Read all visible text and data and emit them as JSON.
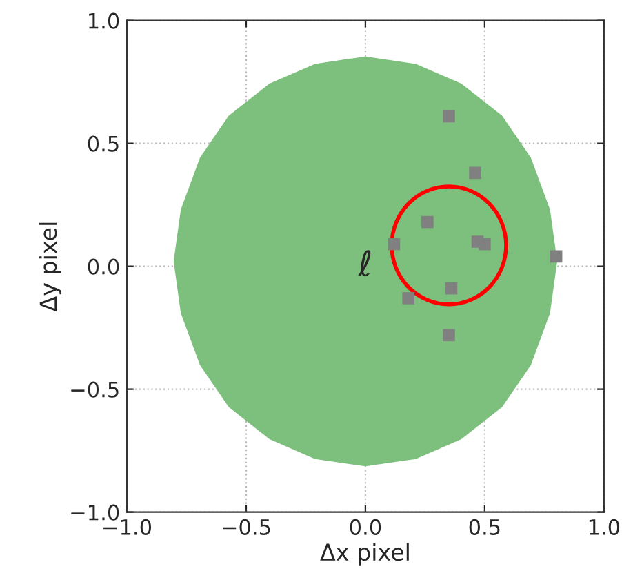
{
  "chart_data": {
    "type": "scatter",
    "xlabel": "Δx pixel",
    "ylabel": "Δy pixel",
    "xlim": [
      -1.0,
      1.0
    ],
    "ylim": [
      -1.0,
      1.0
    ],
    "xticks": [
      {
        "value": -1.0,
        "label": "−1.0"
      },
      {
        "value": -0.5,
        "label": "−0.5"
      },
      {
        "value": 0.0,
        "label": "0.0"
      },
      {
        "value": 0.5,
        "label": "0.5"
      },
      {
        "value": 1.0,
        "label": "1.0"
      }
    ],
    "yticks": [
      {
        "value": -1.0,
        "label": "−1.0"
      },
      {
        "value": -0.5,
        "label": "−0.5"
      },
      {
        "value": 0.0,
        "label": "0.0"
      },
      {
        "value": 0.5,
        "label": "0.5"
      },
      {
        "value": 1.0,
        "label": "1.0"
      }
    ],
    "grid": true,
    "legend": false,
    "series": [
      {
        "type": "area",
        "color": "#7dbf7d",
        "x": [
          0.8,
          0.77,
          0.69,
          0.57,
          0.4,
          0.21,
          0,
          -0.21,
          -0.4,
          -0.57,
          -0.69,
          -0.77,
          -0.8,
          -0.77,
          -0.69,
          -0.57,
          -0.4,
          -0.21,
          0,
          0.21,
          0.4,
          0.57,
          0.69,
          0.77
        ],
        "values": [
          0.02,
          0.23,
          0.44,
          0.61,
          0.74,
          0.82,
          0.85,
          0.82,
          0.74,
          0.61,
          0.44,
          0.23,
          0.02,
          -0.19,
          -0.4,
          -0.57,
          -0.7,
          -0.78,
          -0.81,
          -0.78,
          -0.7,
          -0.57,
          -0.4,
          -0.19
        ]
      },
      {
        "color": "#808080",
        "marker": "square",
        "x": [
          0.35,
          0.46,
          0.26,
          0.12,
          0.47,
          0.5,
          0.8,
          0.36,
          0.18,
          0.35
        ],
        "values": [
          0.61,
          0.38,
          0.18,
          0.09,
          0.1,
          0.09,
          0.04,
          -0.09,
          -0.13,
          -0.28
        ]
      }
    ],
    "annotations": [
      "ℓ"
    ]
  }
}
